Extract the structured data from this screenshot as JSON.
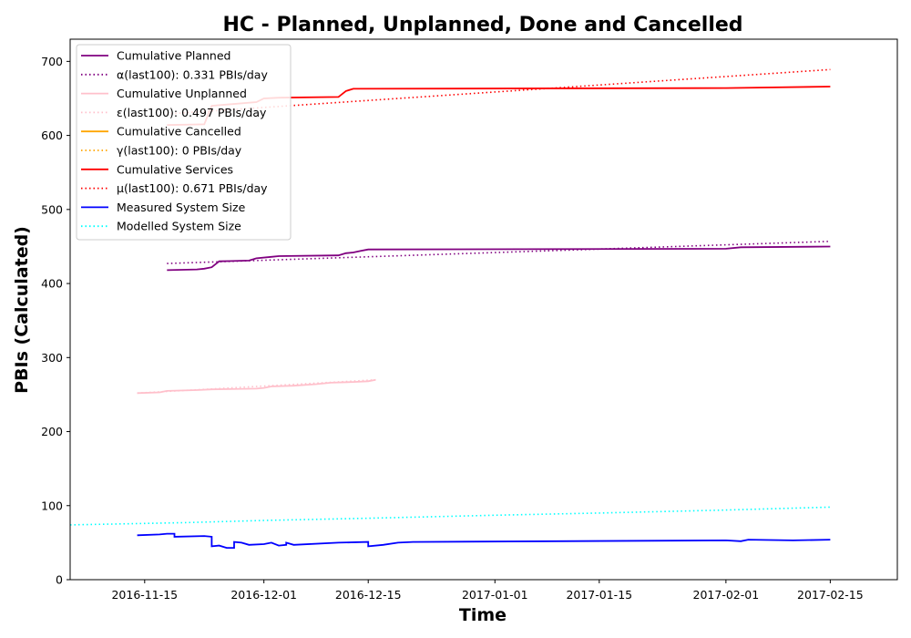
{
  "chart_data": {
    "type": "line",
    "title": "HC - Planned, Unplanned, Done  and Cancelled",
    "xlabel": "Time",
    "ylabel": "PBIs (Calculated)",
    "xlim": [
      "2016-11-05",
      "2017-02-24"
    ],
    "ylim": [
      0,
      730
    ],
    "x_ticks": [
      "2016-11-15",
      "2016-12-01",
      "2016-12-15",
      "2017-01-01",
      "2017-01-15",
      "2017-02-01",
      "2017-02-15"
    ],
    "y_ticks": [
      0,
      100,
      200,
      300,
      400,
      500,
      600,
      700
    ],
    "grid": false,
    "legend_position": "top-left",
    "series": [
      {
        "name": "Cumulative Planned",
        "color": "#800080",
        "style": "solid",
        "points": [
          [
            "2016-11-18",
            418
          ],
          [
            "2016-11-22",
            419
          ],
          [
            "2016-11-23",
            420
          ],
          [
            "2016-11-24",
            422
          ],
          [
            "2016-11-25",
            430
          ],
          [
            "2016-11-29",
            431
          ],
          [
            "2016-11-30",
            434
          ],
          [
            "2016-12-02",
            436
          ],
          [
            "2016-12-03",
            437
          ],
          [
            "2016-12-11",
            438
          ],
          [
            "2016-12-12",
            441
          ],
          [
            "2016-12-13",
            442
          ],
          [
            "2016-12-14",
            444
          ],
          [
            "2016-12-15",
            446
          ],
          [
            "2017-02-01",
            447
          ],
          [
            "2017-02-03",
            449
          ],
          [
            "2017-02-15",
            450
          ]
        ]
      },
      {
        "name": "α(last100): 0.331 PBIs/day",
        "color": "#800080",
        "style": "dotted",
        "points": [
          [
            "2016-11-18",
            427
          ],
          [
            "2017-02-15",
            457
          ]
        ]
      },
      {
        "name": "Cumulative Unplanned",
        "color": "#ffc0cb",
        "style": "solid",
        "points": [
          [
            "2016-11-14",
            252
          ],
          [
            "2016-11-17",
            253
          ],
          [
            "2016-11-18",
            255
          ],
          [
            "2016-11-22",
            256
          ],
          [
            "2016-11-24",
            257
          ],
          [
            "2016-11-30",
            258
          ],
          [
            "2016-12-01",
            259
          ],
          [
            "2016-12-02",
            261
          ],
          [
            "2016-12-05",
            262
          ],
          [
            "2016-12-08",
            264
          ],
          [
            "2016-12-10",
            266
          ],
          [
            "2016-12-13",
            267
          ],
          [
            "2016-12-15",
            268
          ],
          [
            "2016-12-16",
            270
          ]
        ]
      },
      {
        "name": "ε(last100): 0.497 PBIs/day",
        "color": "#ffc0cb",
        "style": "dotted",
        "points": [
          [
            "2016-11-14",
            252
          ],
          [
            "2016-12-16",
            270
          ]
        ]
      },
      {
        "name": "Cumulative Cancelled",
        "color": "#ffa500",
        "style": "solid",
        "points": []
      },
      {
        "name": "γ(last100): 0 PBIs/day",
        "color": "#ffa500",
        "style": "dotted",
        "points": []
      },
      {
        "name": "Cumulative Services",
        "color": "#ff0000",
        "style": "solid",
        "points": [
          [
            "2016-11-18",
            614
          ],
          [
            "2016-11-23",
            615
          ],
          [
            "2016-11-24",
            640
          ],
          [
            "2016-11-30",
            645
          ],
          [
            "2016-12-01",
            650
          ],
          [
            "2016-12-03",
            651
          ],
          [
            "2016-12-11",
            652
          ],
          [
            "2016-12-12",
            660
          ],
          [
            "2016-12-13",
            663
          ],
          [
            "2017-02-01",
            664
          ],
          [
            "2017-02-15",
            666
          ]
        ]
      },
      {
        "name": "μ(last100): 0.671 PBIs/day",
        "color": "#ff0000",
        "style": "dotted",
        "points": [
          [
            "2016-11-18",
            629
          ],
          [
            "2017-02-15",
            689
          ]
        ]
      },
      {
        "name": "Measured System Size",
        "color": "#0000ff",
        "style": "solid",
        "points": [
          [
            "2016-11-14",
            60
          ],
          [
            "2016-11-17",
            61
          ],
          [
            "2016-11-18",
            62
          ],
          [
            "2016-11-19",
            62
          ],
          [
            "2016-11-19",
            58
          ],
          [
            "2016-11-23",
            59
          ],
          [
            "2016-11-24",
            58
          ],
          [
            "2016-11-24",
            45
          ],
          [
            "2016-11-25",
            46
          ],
          [
            "2016-11-26",
            43
          ],
          [
            "2016-11-27",
            43
          ],
          [
            "2016-11-27",
            51
          ],
          [
            "2016-11-28",
            50
          ],
          [
            "2016-11-29",
            47
          ],
          [
            "2016-12-01",
            48
          ],
          [
            "2016-12-02",
            50
          ],
          [
            "2016-12-03",
            46
          ],
          [
            "2016-12-04",
            47
          ],
          [
            "2016-12-04",
            50
          ],
          [
            "2016-12-05",
            47
          ],
          [
            "2016-12-11",
            50
          ],
          [
            "2016-12-15",
            51
          ],
          [
            "2016-12-15",
            45
          ],
          [
            "2016-12-17",
            47
          ],
          [
            "2016-12-19",
            50
          ],
          [
            "2016-12-21",
            51
          ],
          [
            "2017-02-01",
            53
          ],
          [
            "2017-02-03",
            52
          ],
          [
            "2017-02-04",
            54
          ],
          [
            "2017-02-10",
            53
          ],
          [
            "2017-02-15",
            54
          ]
        ]
      },
      {
        "name": "Modelled System Size",
        "color": "#00ffff",
        "style": "dotted",
        "points": [
          [
            "2016-11-05",
            74
          ],
          [
            "2016-11-20",
            77
          ],
          [
            "2016-12-01",
            80
          ],
          [
            "2016-12-15",
            83
          ],
          [
            "2017-01-01",
            87
          ],
          [
            "2017-01-15",
            90
          ],
          [
            "2017-02-01",
            94
          ],
          [
            "2017-02-15",
            98
          ]
        ]
      }
    ]
  }
}
